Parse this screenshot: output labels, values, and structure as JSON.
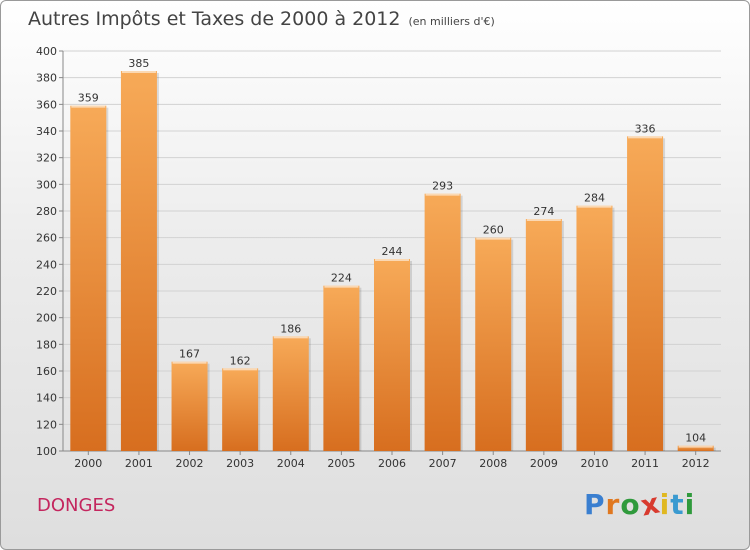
{
  "header": {
    "title": "Autres Impôts et Taxes de 2000 à 2012",
    "subtitle": "(en milliers d'€)"
  },
  "footer": {
    "place": "DONGES",
    "brand": "Proxiti",
    "brand_letters": [
      "P",
      "r",
      "o",
      "x",
      "i",
      "t",
      "i"
    ],
    "brand_colors": [
      "#3a7fd0",
      "#e07820",
      "#2f9a3c",
      "#d83a2e",
      "#e0b820",
      "#3a9ad0",
      "#2f9a3c"
    ]
  },
  "colors": {
    "bar_light": "#f7aa58",
    "bar_dark": "#d76e1f",
    "grid": "#d2d2d2",
    "text": "#333333"
  },
  "chart_data": {
    "type": "bar",
    "title": "Autres Impôts et Taxes de 2000 à 2012",
    "subtitle": "(en milliers d'€)",
    "categories": [
      "2000",
      "2001",
      "2002",
      "2003",
      "2004",
      "2005",
      "2006",
      "2007",
      "2008",
      "2009",
      "2010",
      "2011",
      "2012"
    ],
    "values": [
      359,
      385,
      167,
      162,
      186,
      224,
      244,
      293,
      260,
      274,
      284,
      336,
      104
    ],
    "ylim": [
      100,
      400
    ],
    "yticks": [
      100,
      120,
      140,
      160,
      180,
      200,
      220,
      240,
      260,
      280,
      300,
      320,
      340,
      360,
      380,
      400
    ],
    "grid": true,
    "legend": "none"
  }
}
